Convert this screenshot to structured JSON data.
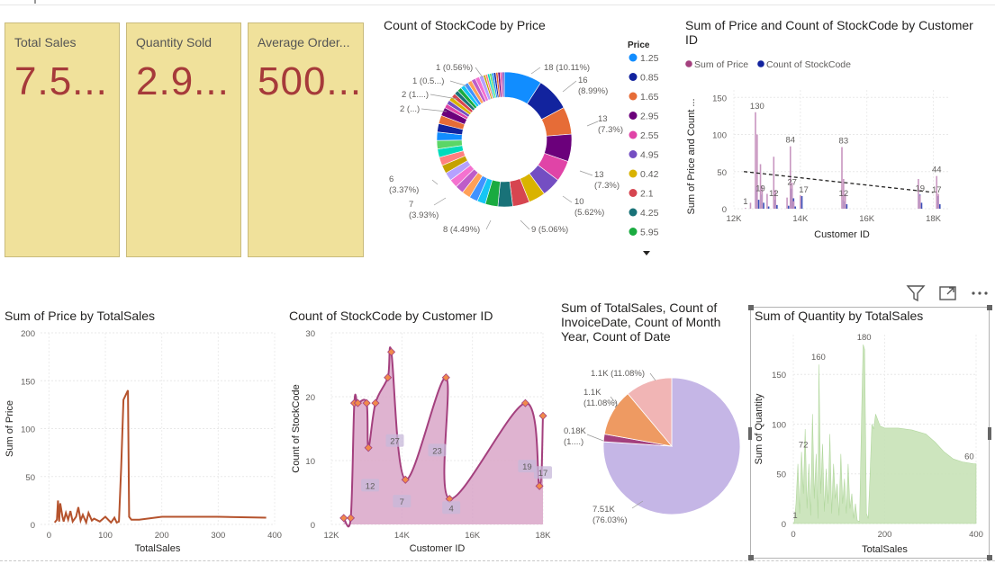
{
  "cards": [
    {
      "label": "Total Sales",
      "value": "7.5..."
    },
    {
      "label": "Quantity Sold",
      "value": "2.9..."
    },
    {
      "label": "Average Order...",
      "value": "500..."
    }
  ],
  "colors": {
    "card_bg": "#f0e19b",
    "card_value": "#a63a3a",
    "line_price": "#b5532d",
    "area_stock": "#a4407e",
    "area_qty": "#c8e3b8",
    "pie_main": "#c5b6e6"
  },
  "icons": [
    "filter-icon",
    "focus-mode-icon",
    "more-options-icon",
    "dropdown-arrow-icon"
  ],
  "chart_data": [
    {
      "type": "donut",
      "title": "Count of StockCode by Price",
      "legend_title": "Price",
      "legend": [
        {
          "name": "1.25",
          "color": "#118dff"
        },
        {
          "name": "0.85",
          "color": "#12239e"
        },
        {
          "name": "1.65",
          "color": "#e66c37"
        },
        {
          "name": "2.95",
          "color": "#6b007b"
        },
        {
          "name": "2.55",
          "color": "#e044a7"
        },
        {
          "name": "4.95",
          "color": "#744ec2"
        },
        {
          "name": "0.42",
          "color": "#d9b300"
        },
        {
          "name": "2.1",
          "color": "#d64550"
        },
        {
          "name": "4.25",
          "color": "#197278"
        },
        {
          "name": "5.95",
          "color": "#1aab40"
        }
      ],
      "slices": [
        {
          "value": 18,
          "label": "18 (10.11%)"
        },
        {
          "value": 16,
          "label": "16 (8.99%)"
        },
        {
          "value": 13,
          "label": "13 (7.3%)"
        },
        {
          "value": 13,
          "label": "13 (7.3%)"
        },
        {
          "value": 10,
          "label": "10 (5.62%)"
        },
        {
          "value": 9,
          "label": "9 (5.06%)"
        },
        {
          "value": 8,
          "label": "8 (4.49%)"
        },
        {
          "value": 8,
          "label": "8 (4.49%)"
        },
        {
          "value": 7,
          "label": "7 (3.93%)"
        },
        {
          "value": 6,
          "label": "6 (3.37%)"
        }
      ],
      "small_labels": [
        "1 (0.56%)",
        "1 (0.5...)",
        "2 (1....)",
        "2 (...)"
      ]
    },
    {
      "type": "bar",
      "title": "Sum of Price and Count of StockCode by Customer ID",
      "legend": [
        {
          "name": "Sum of Price",
          "color": "#a4407e"
        },
        {
          "name": "Count of StockCode",
          "color": "#12239e"
        }
      ],
      "xlabel": "Customer ID",
      "ylabel": "Sum of Price and Count ...",
      "xticks": [
        "12K",
        "14K",
        "16K",
        "18K"
      ],
      "yticks": [
        "0",
        "50",
        "100",
        "150"
      ],
      "xlim": [
        12000,
        18500
      ],
      "ylim": [
        0,
        160
      ],
      "data_labels": [
        {
          "x": 12350,
          "y": 1,
          "text": "1"
        },
        {
          "x": 12700,
          "y": 130,
          "text": "130"
        },
        {
          "x": 12800,
          "y": 19,
          "text": "19"
        },
        {
          "x": 13200,
          "y": 12,
          "text": "12"
        },
        {
          "x": 13700,
          "y": 84,
          "text": "84"
        },
        {
          "x": 13750,
          "y": 27,
          "text": "27"
        },
        {
          "x": 14100,
          "y": 17,
          "text": "17"
        },
        {
          "x": 15300,
          "y": 83,
          "text": "83"
        },
        {
          "x": 15300,
          "y": 12,
          "text": "12"
        },
        {
          "x": 17600,
          "y": 19,
          "text": "19"
        },
        {
          "x": 18100,
          "y": 44,
          "text": "44"
        },
        {
          "x": 18100,
          "y": 17,
          "text": "17"
        }
      ],
      "trend": [
        [
          12300,
          50
        ],
        [
          18000,
          22
        ]
      ]
    },
    {
      "type": "line",
      "title": "Sum of Price by TotalSales",
      "xlabel": "TotalSales",
      "ylabel": "Sum of Price",
      "xticks": [
        "0",
        "100",
        "200",
        "300",
        "400"
      ],
      "yticks": [
        "0",
        "50",
        "100",
        "150",
        "200"
      ],
      "xlim": [
        -15,
        400
      ],
      "ylim": [
        0,
        200
      ],
      "x": [
        10,
        14,
        16,
        18,
        20,
        24,
        26,
        30,
        34,
        38,
        42,
        48,
        52,
        56,
        60,
        66,
        70,
        76,
        80,
        90,
        100,
        110,
        116,
        120,
        124,
        128,
        132,
        136,
        140,
        142,
        146,
        160,
        200,
        300,
        385
      ],
      "y": [
        2,
        5,
        25,
        3,
        22,
        8,
        3,
        12,
        5,
        14,
        3,
        8,
        18,
        4,
        10,
        2,
        12,
        4,
        6,
        3,
        8,
        2,
        7,
        2,
        3,
        60,
        130,
        135,
        140,
        8,
        5,
        5,
        8,
        8,
        7
      ]
    },
    {
      "type": "area",
      "title": "Count of StockCode by Customer ID",
      "xlabel": "Customer ID",
      "ylabel": "Count of StockCode",
      "xticks": [
        "12K",
        "14K",
        "16K",
        "18K"
      ],
      "yticks": [
        "0",
        "10",
        "20",
        "30"
      ],
      "xlim": [
        12000,
        18000
      ],
      "ylim": [
        0,
        30
      ],
      "x": [
        12350,
        12550,
        12650,
        12750,
        13000,
        13050,
        13250,
        13600,
        13700,
        14100,
        15250,
        15350,
        17500,
        17900,
        18000
      ],
      "y": [
        1,
        1,
        19,
        19,
        19,
        12,
        19,
        23,
        27,
        7,
        23,
        4,
        19,
        6,
        17
      ],
      "point_labels": [
        {
          "x": 13100,
          "y": 6,
          "text": "12"
        },
        {
          "x": 13800,
          "y": 13,
          "text": "27"
        },
        {
          "x": 14000,
          "y": 3.5,
          "text": "7"
        },
        {
          "x": 15000,
          "y": 11.5,
          "text": "23"
        },
        {
          "x": 15400,
          "y": 2.5,
          "text": "4"
        },
        {
          "x": 17550,
          "y": 9,
          "text": "19"
        },
        {
          "x": 18000,
          "y": 8,
          "text": "17"
        }
      ]
    },
    {
      "type": "pie",
      "title": "Sum of TotalSales, Count of InvoiceDate, Count of Month Year, Count of Date",
      "slices": [
        {
          "value": 76.03,
          "label": "7.51K (76.03%)",
          "color": "#c5b6e6"
        },
        {
          "value": 1.81,
          "label": "0.18K (1....)",
          "color": "#a4407e"
        },
        {
          "value": 11.08,
          "label": "1.1K (11.08%)",
          "color": "#ee9a62"
        },
        {
          "value": 11.08,
          "label": "1.1K (11.08%)",
          "color": "#f1b5b5"
        }
      ]
    },
    {
      "type": "area",
      "title": "Sum of Quantity by TotalSales",
      "xlabel": "TotalSales",
      "ylabel": "Sum of Quantity",
      "xticks": [
        "0",
        "200",
        "400"
      ],
      "yticks": [
        "0",
        "50",
        "100",
        "150"
      ],
      "xlim": [
        0,
        400
      ],
      "ylim": [
        0,
        190
      ],
      "data_labels": [
        {
          "x": 22,
          "y": 72,
          "text": "72"
        },
        {
          "x": 55,
          "y": 160,
          "text": "160"
        },
        {
          "x": 155,
          "y": 180,
          "text": "180"
        },
        {
          "x": 385,
          "y": 60,
          "text": "60"
        },
        {
          "x": 4,
          "y": 1,
          "text": "1"
        }
      ]
    }
  ]
}
